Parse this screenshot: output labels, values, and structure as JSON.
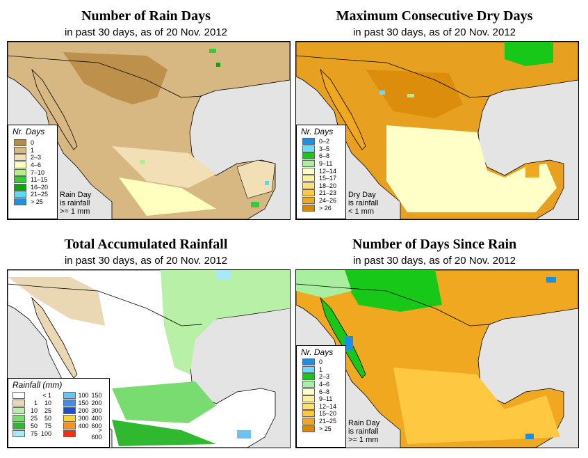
{
  "panels": [
    {
      "title": "Number of Rain Days",
      "subtitle": "in past 30 days, as of  20 Nov. 2012",
      "legend_title": "Nr. Days",
      "legend": [
        {
          "label": "0",
          "color": "#b88a43"
        },
        {
          "label": "1",
          "color": "#d8b882"
        },
        {
          "label": "2–3",
          "color": "#f2dfb6"
        },
        {
          "label": "4–6",
          "color": "#ffffc0"
        },
        {
          "label": "7–10",
          "color": "#aef28c"
        },
        {
          "label": "11–15",
          "color": "#3cc83c"
        },
        {
          "label": "16–20",
          "color": "#10a010"
        },
        {
          "label": "21–25",
          "color": "#60d8f0"
        },
        {
          "label": "> 25",
          "color": "#2090e0"
        }
      ],
      "note": [
        "Rain Day",
        "is rainfall",
        ">= 1 mm"
      ]
    },
    {
      "title": "Maximum Consecutive Dry Days",
      "subtitle": "in past 30 days, as of  20 Nov. 2012",
      "legend_title": "Nr. Days",
      "legend": [
        {
          "label": "0–2",
          "color": "#1890e8"
        },
        {
          "label": "3–5",
          "color": "#70d8f8"
        },
        {
          "label": "6–8",
          "color": "#18c818"
        },
        {
          "label": "9–11",
          "color": "#a8f0a0"
        },
        {
          "label": "12–14",
          "color": "#ffffc8"
        },
        {
          "label": "15–17",
          "color": "#fff09a"
        },
        {
          "label": "18–20",
          "color": "#ffe070"
        },
        {
          "label": "21–23",
          "color": "#ffc840"
        },
        {
          "label": "24–26",
          "color": "#f0a820"
        },
        {
          "label": "> 26",
          "color": "#d88808"
        }
      ],
      "note": [
        "Dry Day",
        "is rainfall",
        "< 1 mm"
      ]
    },
    {
      "title": "Total Accumulated Rainfall",
      "subtitle": "in past 30 days, as of  20 Nov. 2012",
      "legend_title": "Rainfall (mm)",
      "legend_left": [
        {
          "lo": "",
          "hi": "< 1",
          "color": "#ffffff"
        },
        {
          "lo": "1",
          "hi": "10",
          "color": "#ead8b4"
        },
        {
          "lo": "10",
          "hi": "25",
          "color": "#b8f0a8"
        },
        {
          "lo": "25",
          "hi": "50",
          "color": "#78dc70"
        },
        {
          "lo": "50",
          "hi": "75",
          "color": "#30b830"
        },
        {
          "lo": "75",
          "hi": "100",
          "color": "#a8e8f8"
        }
      ],
      "legend_right": [
        {
          "lo": "100",
          "hi": "150",
          "color": "#70c0f0"
        },
        {
          "lo": "150",
          "hi": "200",
          "color": "#3c90e8"
        },
        {
          "lo": "200",
          "hi": "300",
          "color": "#1c50c8"
        },
        {
          "lo": "300",
          "hi": "400",
          "color": "#ffd040"
        },
        {
          "lo": "400",
          "hi": "600",
          "color": "#ff9020"
        },
        {
          "lo": "",
          "hi": "> 600",
          "color": "#f03010"
        }
      ]
    },
    {
      "title": "Number of Days Since Rain",
      "subtitle": "in past 30 days, as of  20 Nov. 2012",
      "legend_title": "Nr. Days",
      "legend": [
        {
          "label": "0",
          "color": "#1890e8"
        },
        {
          "label": "1",
          "color": "#70d8f8"
        },
        {
          "label": "2–3",
          "color": "#18c818"
        },
        {
          "label": "4–6",
          "color": "#a8f0a0"
        },
        {
          "label": "6–8",
          "color": "#ffffc8"
        },
        {
          "label": "9–11",
          "color": "#fff09a"
        },
        {
          "label": "12–14",
          "color": "#ffe070"
        },
        {
          "label": "15–20",
          "color": "#ffc840"
        },
        {
          "label": "21–25",
          "color": "#f0a820"
        },
        {
          "label": "> 25",
          "color": "#d88808"
        }
      ],
      "note": [
        "Rain Day",
        "is rainfall",
        ">= 1 mm"
      ]
    }
  ],
  "colors": {
    "ocean": "#e4e4e4",
    "panel1_land": "#d8b882",
    "panel1_dark": "#b88a43",
    "panel1_light": "#f2dfb6",
    "panel1_cream": "#ffffc0",
    "panel2_land": "#e8a020",
    "panel2_light": "#ffffc8",
    "panel3_land": "#ffffff",
    "panel3_tan": "#ead8b4",
    "panel3_green": "#78dc70",
    "panel4_land": "#f0a820",
    "panel4_yellow": "#ffc840"
  }
}
